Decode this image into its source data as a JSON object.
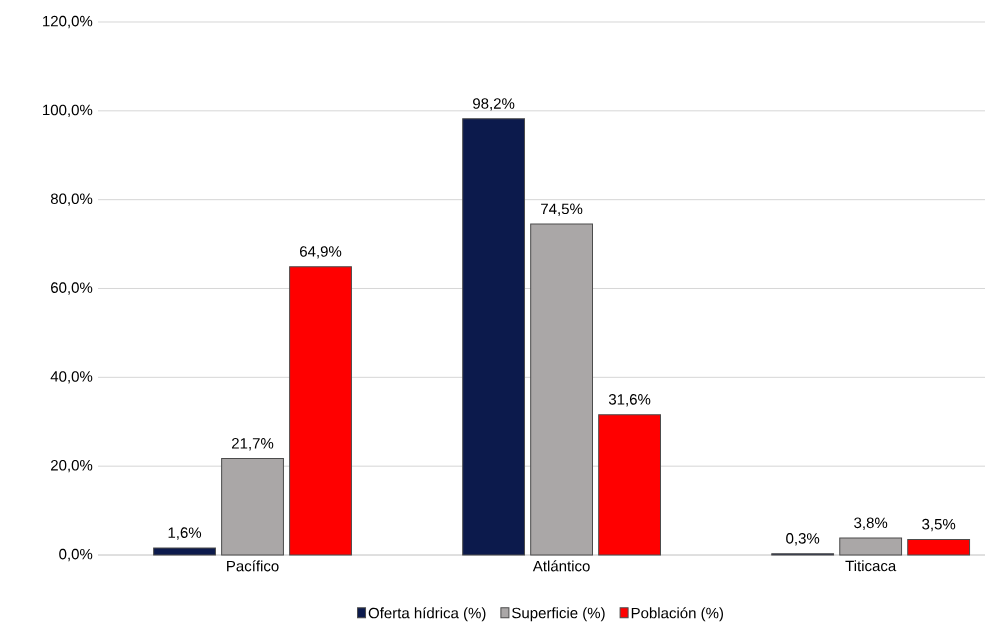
{
  "chart_data": {
    "type": "bar",
    "categories": [
      "Pacífico",
      "Atlántico",
      "Titicaca"
    ],
    "series": [
      {
        "name": "Oferta hídrica (%)",
        "color": "#0c1a4c",
        "values": [
          1.6,
          98.2,
          0.3
        ],
        "value_labels": [
          "1,6%",
          "98,2%",
          "0,3%"
        ]
      },
      {
        "name": "Superficie (%)",
        "color": "#aaa7a7",
        "values": [
          21.7,
          74.5,
          3.8
        ],
        "value_labels": [
          "21,7%",
          "74,5%",
          "3,8%"
        ]
      },
      {
        "name": "Población (%)",
        "color": "#ff0000",
        "values": [
          64.9,
          31.6,
          3.5
        ],
        "value_labels": [
          "64,9%",
          "31,6%",
          "3,5%"
        ]
      }
    ],
    "ylim": [
      0,
      120
    ],
    "yticks": [
      {
        "value": 0,
        "label": "0,0%"
      },
      {
        "value": 20,
        "label": "20,0%"
      },
      {
        "value": 40,
        "label": "40,0%"
      },
      {
        "value": 60,
        "label": "60,0%"
      },
      {
        "value": 80,
        "label": "80,0%"
      },
      {
        "value": 100,
        "label": "100,0%"
      },
      {
        "value": 120,
        "label": "120,0%"
      }
    ],
    "grid": "y",
    "legend": "bottom"
  }
}
